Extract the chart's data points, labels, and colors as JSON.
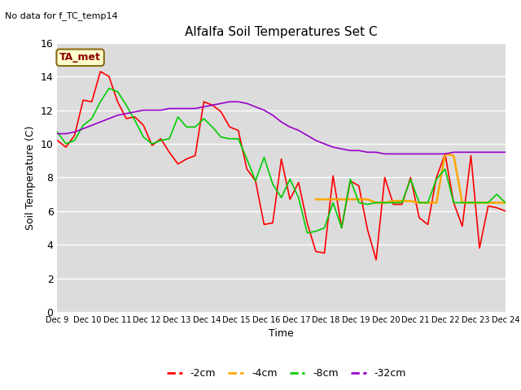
{
  "title": "Alfalfa Soil Temperatures Set C",
  "xlabel": "Time",
  "ylabel": "Soil Temperature (C)",
  "no_data_label": "No data for f_TC_temp14",
  "ta_met_label": "TA_met",
  "ylim": [
    0,
    16
  ],
  "yticks": [
    0,
    2,
    4,
    6,
    8,
    10,
    12,
    14,
    16
  ],
  "x_labels": [
    "Dec 9",
    "Dec 10",
    "Dec 11",
    "Dec 12",
    "Dec 13",
    "Dec 14",
    "Dec 15",
    "Dec 16",
    "Dec 17",
    "Dec 18",
    "Dec 19",
    "Dec 20",
    "Dec 21",
    "Dec 22",
    "Dec 23",
    "Dec 24"
  ],
  "colors": {
    "minus2cm": "#ff0000",
    "minus4cm": "#ffa500",
    "minus8cm": "#00cc00",
    "minus32cm": "#9900cc"
  },
  "background_color": "#dcdcdc",
  "series_minus2cm": [
    10.2,
    9.8,
    10.5,
    12.6,
    12.5,
    14.3,
    14.0,
    12.5,
    11.5,
    11.6,
    11.1,
    9.9,
    10.3,
    9.5,
    8.8,
    9.1,
    9.3,
    12.5,
    12.3,
    11.9,
    11.0,
    10.8,
    8.5,
    7.8,
    5.2,
    5.3,
    9.1,
    6.7,
    7.7,
    5.3,
    3.6,
    3.5,
    8.1,
    5.0,
    7.8,
    7.5,
    4.9,
    3.1,
    8.0,
    6.4,
    6.4,
    8.0,
    5.6,
    5.2,
    8.0,
    9.4,
    6.5,
    5.1,
    9.3,
    3.8,
    6.3,
    6.2,
    6.0
  ],
  "series_minus4cm": [
    null,
    null,
    null,
    null,
    null,
    null,
    null,
    null,
    null,
    null,
    null,
    null,
    null,
    null,
    null,
    null,
    null,
    null,
    null,
    null,
    null,
    null,
    null,
    null,
    null,
    null,
    null,
    null,
    null,
    null,
    6.7,
    6.7,
    6.7,
    6.7,
    6.7,
    6.7,
    6.7,
    6.5,
    6.5,
    6.6,
    6.6,
    6.6,
    6.5,
    6.5,
    6.5,
    9.4,
    9.3,
    6.5,
    6.5,
    6.5,
    6.5,
    6.5,
    6.5
  ],
  "series_minus8cm": [
    10.7,
    10.0,
    10.2,
    11.1,
    11.5,
    12.5,
    13.3,
    13.1,
    12.3,
    11.4,
    10.4,
    10.0,
    10.2,
    10.3,
    11.6,
    11.0,
    11.0,
    11.5,
    11.0,
    10.4,
    10.3,
    10.3,
    9.1,
    7.8,
    9.2,
    7.6,
    6.8,
    7.9,
    6.8,
    4.7,
    4.8,
    5.0,
    6.5,
    5.0,
    7.9,
    6.5,
    6.4,
    6.5,
    6.5,
    6.5,
    6.5,
    7.9,
    6.5,
    6.5,
    7.9,
    8.5,
    6.5,
    6.5,
    6.5,
    6.5,
    6.5,
    7.0,
    6.5
  ],
  "series_minus32cm": [
    10.6,
    10.6,
    10.7,
    10.9,
    11.1,
    11.3,
    11.5,
    11.7,
    11.8,
    11.9,
    12.0,
    12.0,
    12.0,
    12.1,
    12.1,
    12.1,
    12.1,
    12.2,
    12.3,
    12.4,
    12.5,
    12.5,
    12.4,
    12.2,
    12.0,
    11.7,
    11.3,
    11.0,
    10.8,
    10.5,
    10.2,
    10.0,
    9.8,
    9.7,
    9.6,
    9.6,
    9.5,
    9.5,
    9.4,
    9.4,
    9.4,
    9.4,
    9.4,
    9.4,
    9.4,
    9.4,
    9.5,
    9.5,
    9.5,
    9.5,
    9.5,
    9.5,
    9.5
  ]
}
